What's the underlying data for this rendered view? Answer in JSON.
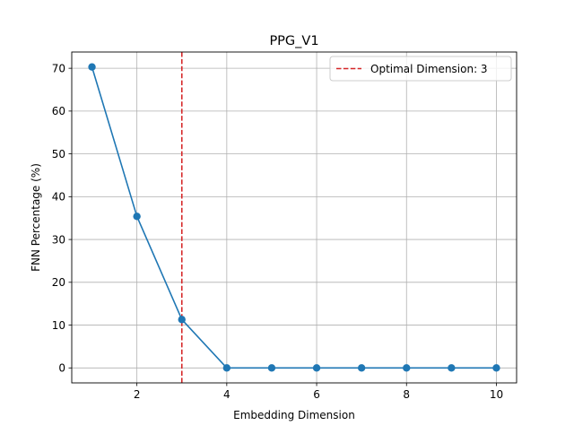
{
  "chart_data": {
    "type": "line",
    "title": "PPG_V1",
    "xlabel": "Embedding Dimension",
    "ylabel": "FNN Percentage (%)",
    "x": [
      1,
      2,
      3,
      4,
      5,
      6,
      7,
      8,
      9,
      10
    ],
    "series": [
      {
        "values": [
          70.3,
          35.4,
          11.3,
          0,
          0,
          0,
          0,
          0,
          0,
          0
        ],
        "color": "#1f77b4"
      }
    ],
    "xlim": [
      0.55,
      10.45
    ],
    "ylim": [
      -3.5,
      73.8
    ],
    "xticks": [
      2,
      4,
      6,
      8,
      10
    ],
    "yticks": [
      0,
      10,
      20,
      30,
      40,
      50,
      60,
      70
    ],
    "grid": true,
    "vline": {
      "x": 3,
      "label": "Optimal Dimension: 3",
      "color": "#d62728",
      "style": "dashed"
    },
    "legend": {
      "position": "top-right"
    }
  }
}
